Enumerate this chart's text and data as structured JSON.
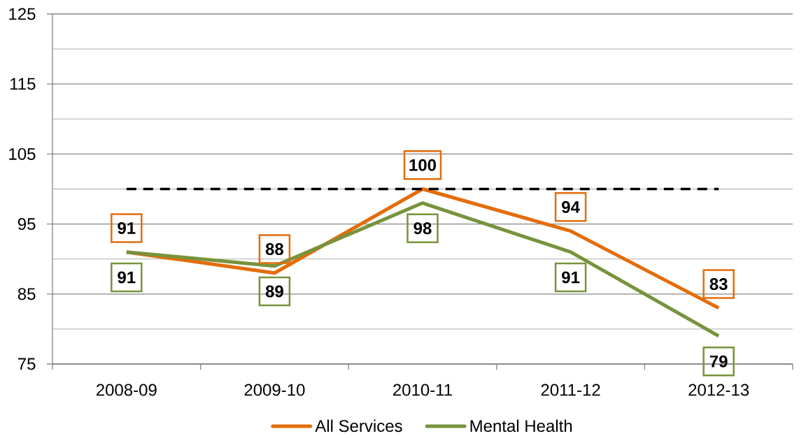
{
  "chart_data": {
    "type": "line",
    "categories": [
      "2008-09",
      "2009-10",
      "2010-11",
      "2011-12",
      "2012-13"
    ],
    "series": [
      {
        "name": "All Services",
        "color": "#e46c0a",
        "values": [
          91,
          88,
          100,
          94,
          83
        ]
      },
      {
        "name": "Mental Health",
        "color": "#77933c",
        "values": [
          91,
          89,
          98,
          91,
          79
        ]
      }
    ],
    "ylim": [
      75,
      125
    ],
    "yticks": [
      75,
      {
        "value": 80,
        "label": null
      },
      85,
      {
        "value": 90,
        "label": null
      },
      95,
      {
        "value": 100,
        "label": null
      },
      105,
      {
        "value": 110,
        "label": null
      },
      115,
      {
        "value": 120,
        "label": null
      },
      125
    ],
    "grid": "y",
    "legend": "bottom",
    "data_labels": true,
    "ref_lines": [
      {
        "axis": "y",
        "value": 100,
        "color": "#000000",
        "line_style": "dashed"
      }
    ]
  }
}
